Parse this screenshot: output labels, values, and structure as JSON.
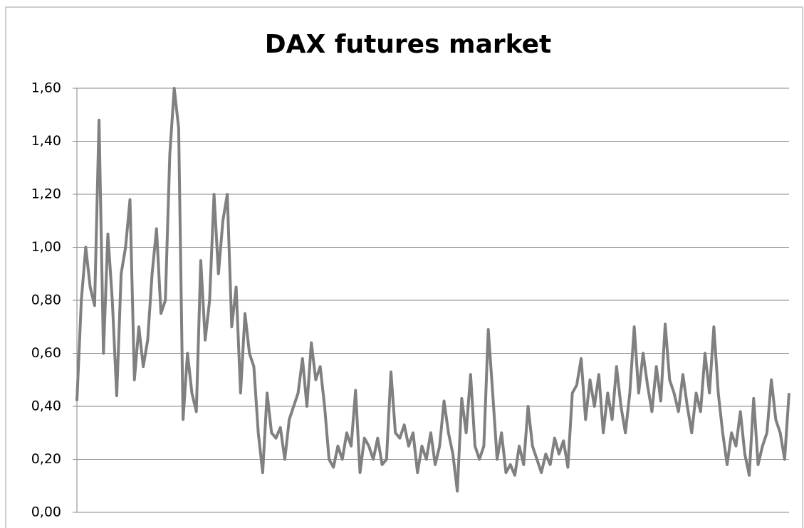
{
  "chart_data": {
    "type": "line",
    "title": "DAX futures market",
    "color": "#808080",
    "grid": true,
    "ylim": [
      0,
      1.6
    ],
    "yticks": [
      {
        "value": 0,
        "label": "0,00"
      },
      {
        "value": 0.2,
        "label": "0,20"
      },
      {
        "value": 0.4,
        "label": "0,40"
      },
      {
        "value": 0.6,
        "label": "0,60"
      },
      {
        "value": 0.8,
        "label": "0,80"
      },
      {
        "value": 1.0,
        "label": "1,00"
      },
      {
        "value": 1.2,
        "label": "1,20"
      },
      {
        "value": 1.4,
        "label": "1,40"
      },
      {
        "value": 1.6,
        "label": "1,60"
      }
    ],
    "values": [
      0.42,
      0.8,
      1.0,
      0.85,
      0.78,
      1.48,
      0.6,
      1.05,
      0.8,
      0.44,
      0.9,
      1.0,
      1.18,
      0.5,
      0.7,
      0.55,
      0.65,
      0.9,
      1.07,
      0.75,
      0.8,
      1.35,
      1.6,
      1.45,
      0.35,
      0.6,
      0.45,
      0.38,
      0.95,
      0.65,
      0.8,
      1.2,
      0.9,
      1.1,
      1.2,
      0.7,
      0.85,
      0.45,
      0.75,
      0.6,
      0.55,
      0.3,
      0.15,
      0.45,
      0.3,
      0.28,
      0.32,
      0.2,
      0.35,
      0.4,
      0.45,
      0.58,
      0.4,
      0.64,
      0.5,
      0.55,
      0.4,
      0.2,
      0.17,
      0.25,
      0.2,
      0.3,
      0.25,
      0.46,
      0.15,
      0.28,
      0.25,
      0.2,
      0.28,
      0.18,
      0.2,
      0.53,
      0.3,
      0.28,
      0.33,
      0.25,
      0.3,
      0.15,
      0.25,
      0.2,
      0.3,
      0.18,
      0.25,
      0.42,
      0.3,
      0.22,
      0.08,
      0.43,
      0.3,
      0.52,
      0.25,
      0.2,
      0.25,
      0.69,
      0.45,
      0.2,
      0.3,
      0.15,
      0.18,
      0.14,
      0.25,
      0.18,
      0.4,
      0.25,
      0.2,
      0.15,
      0.22,
      0.18,
      0.28,
      0.22,
      0.27,
      0.17,
      0.45,
      0.48,
      0.58,
      0.35,
      0.5,
      0.4,
      0.52,
      0.3,
      0.45,
      0.35,
      0.55,
      0.4,
      0.3,
      0.45,
      0.7,
      0.45,
      0.6,
      0.48,
      0.38,
      0.55,
      0.42,
      0.71,
      0.5,
      0.45,
      0.38,
      0.52,
      0.4,
      0.3,
      0.45,
      0.38,
      0.6,
      0.45,
      0.7,
      0.45,
      0.3,
      0.18,
      0.3,
      0.25,
      0.38,
      0.22,
      0.14,
      0.43,
      0.18,
      0.25,
      0.3,
      0.5,
      0.35,
      0.3,
      0.2,
      0.45
    ]
  }
}
